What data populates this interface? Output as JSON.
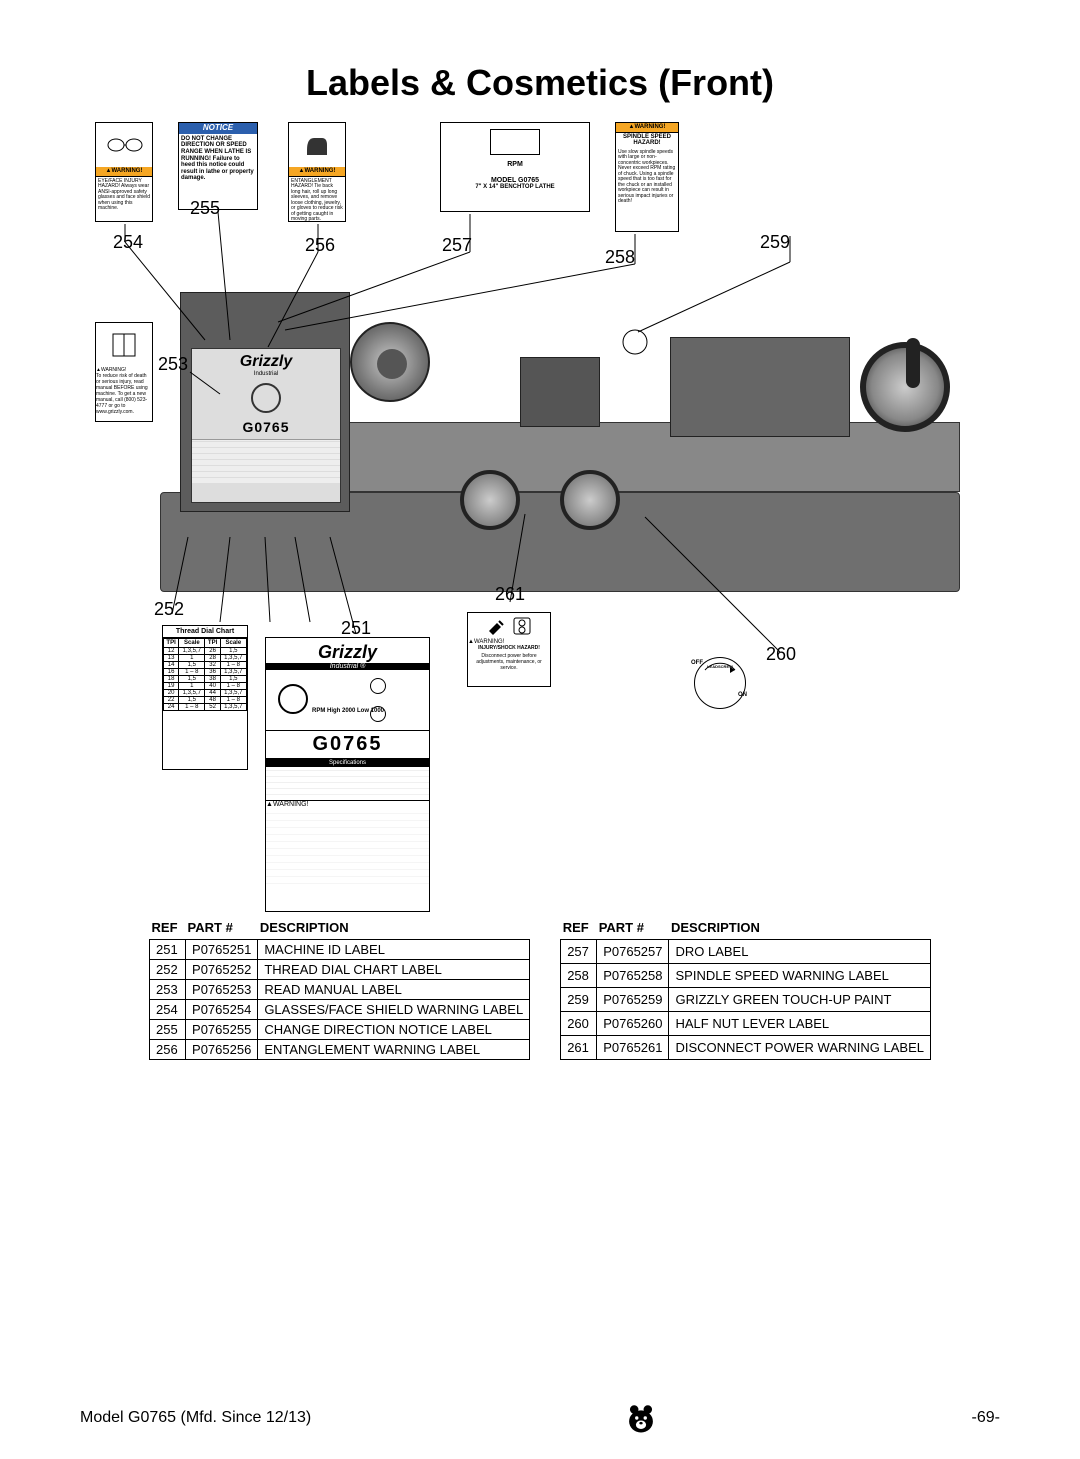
{
  "page": {
    "title": "Labels & Cosmetics (Front)",
    "model_footer": "Model G0765 (Mfd. Since 12/13)",
    "page_number": "-69-"
  },
  "callouts": {
    "c254": "254",
    "c255": "255",
    "c256": "256",
    "c257": "257",
    "c258": "258",
    "c259": "259",
    "c253": "253",
    "c252": "252",
    "c251": "251",
    "c261": "261",
    "c260": "260"
  },
  "top_labels": {
    "glasses": {
      "header": "WARNING!",
      "body": "EYE/FACE INJURY HAZARD! Always wear ANSI-approved safety glasses and face shield when using this machine."
    },
    "notice": {
      "header": "NOTICE",
      "body": "DO NOT CHANGE DIRECTION OR SPEED RANGE WHEN LATHE IS RUNNING! Failure to heed this notice could result in lathe or property damage."
    },
    "entangle": {
      "header": "WARNING!",
      "body": "ENTANGLEMENT HAZARD! Tie back long hair, roll up long sleeves, and remove loose clothing, jewelry, or gloves to reduce risk of getting caught in moving parts."
    },
    "dro": {
      "rpm": "RPM",
      "model": "MODEL G0765",
      "desc": "7\" X 14\" BENCHTOP LATHE"
    },
    "spindle": {
      "header": "WARNING!",
      "title": "SPINDLE SPEED HAZARD!",
      "body": "Use slow spindle speeds with large or non-concentric workpieces. Never exceed RPM rating of chuck. Using a spindle speed that is too fast for the chuck or an installed workpiece can result in serious impact injuries or death!"
    },
    "manual": {
      "header": "WARNING!",
      "body": "To reduce risk of death or serious injury, read manual BEFORE using machine. To get a new manual, call (800) 523-4777 or go to www.grizzly.com."
    }
  },
  "lower_labels": {
    "thread_dial": {
      "title": "Thread Dial Chart",
      "headers": [
        "TPI",
        "Scale",
        "TPI",
        "Scale"
      ],
      "rows": [
        [
          "12",
          "1,3,5,7",
          "26",
          "1,5"
        ],
        [
          "13",
          "1",
          "28",
          "1,3,5,7"
        ],
        [
          "14",
          "1,5",
          "32",
          "1 – 8"
        ],
        [
          "16",
          "1 – 8",
          "36",
          "1,3,5,7"
        ],
        [
          "18",
          "1,5",
          "38",
          "1,5"
        ],
        [
          "19",
          "1",
          "40",
          "1 – 8"
        ],
        [
          "20",
          "1,3,5,7",
          "44",
          "1,3,5,7"
        ],
        [
          "22",
          "1,5",
          "48",
          "1 – 8"
        ],
        [
          "24",
          "1 – 8",
          "52",
          "1,3,5,7"
        ]
      ]
    },
    "machine_id": {
      "logo": "Grizzly",
      "sub": "Industrial ®",
      "rpm_text": "RPM  High 2000  Low 1000",
      "model": "G0765",
      "spec_header": "Specifications",
      "warning_header": "WARNING!"
    },
    "disconnect": {
      "header": "WARNING!",
      "title": "INJURY/SHOCK HAZARD!",
      "body": "Disconnect power before adjustments, maintenance, or service."
    },
    "half_nut": {
      "off": "OFF",
      "lead": "LEADSCREW",
      "on": "ON"
    }
  },
  "lathe_panel": {
    "logo": "Grizzly",
    "sub": "Industrial",
    "model": "G0765"
  },
  "tables": {
    "headers": [
      "REF",
      "PART #",
      "DESCRIPTION"
    ],
    "left_rows": [
      {
        "ref": "251",
        "part": "P0765251",
        "desc": "MACHINE ID LABEL"
      },
      {
        "ref": "252",
        "part": "P0765252",
        "desc": "THREAD DIAL CHART LABEL"
      },
      {
        "ref": "253",
        "part": "P0765253",
        "desc": "READ MANUAL LABEL"
      },
      {
        "ref": "254",
        "part": "P0765254",
        "desc": "GLASSES/FACE SHIELD WARNING LABEL"
      },
      {
        "ref": "255",
        "part": "P0765255",
        "desc": "CHANGE DIRECTION NOTICE LABEL"
      },
      {
        "ref": "256",
        "part": "P0765256",
        "desc": "ENTANGLEMENT WARNING LABEL"
      }
    ],
    "right_rows": [
      {
        "ref": "257",
        "part": "P0765257",
        "desc": "DRO LABEL"
      },
      {
        "ref": "258",
        "part": "P0765258",
        "desc": "SPINDLE SPEED WARNING LABEL"
      },
      {
        "ref": "259",
        "part": "P0765259",
        "desc": "GRIZZLY GREEN TOUCH-UP PAINT"
      },
      {
        "ref": "260",
        "part": "P0765260",
        "desc": "HALF NUT LEVER LABEL"
      },
      {
        "ref": "261",
        "part": "P0765261",
        "desc": "DISCONNECT POWER WARNING LABEL"
      }
    ]
  },
  "colors": {
    "warning_bg": "#f5a623",
    "notice_bg": "#2b5fad",
    "lathe_body": "#6f6f6f"
  }
}
